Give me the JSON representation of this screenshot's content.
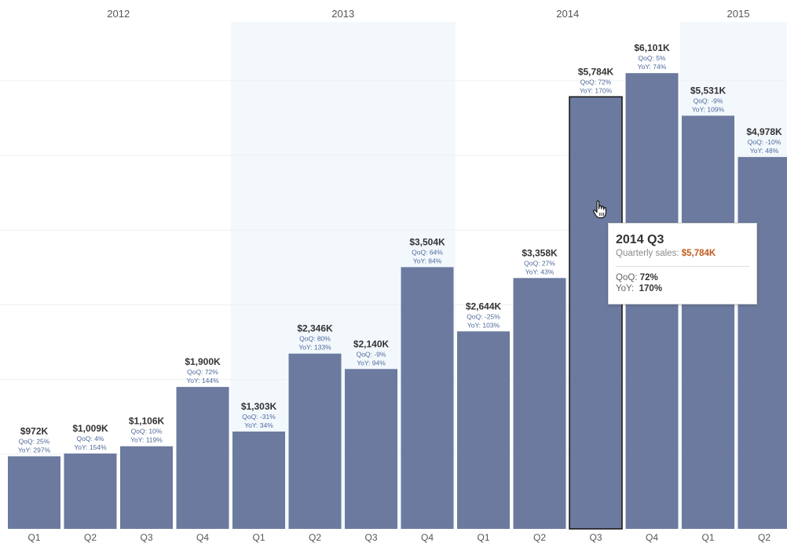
{
  "colors": {
    "bar": "#6b7a9e",
    "bar_highlight_outline": "#111111",
    "band": "#f3f8fd",
    "value_label": "#333333",
    "pct_label": "#4d6a9a",
    "tooltip_value": "#c05a1c"
  },
  "chart_data": {
    "type": "bar",
    "years": [
      "2012",
      "2013",
      "2014",
      "2015"
    ],
    "categories": [
      "Q1",
      "Q2",
      "Q3",
      "Q4",
      "Q1",
      "Q2",
      "Q3",
      "Q4",
      "Q1",
      "Q2",
      "Q3",
      "Q4",
      "Q1",
      "Q2"
    ],
    "values": [
      972,
      1009,
      1106,
      1900,
      1303,
      2346,
      2140,
      3504,
      2644,
      3358,
      5784,
      6101,
      5531,
      4978
    ],
    "value_labels": [
      "$972K",
      "$1,009K",
      "$1,106K",
      "$1,900K",
      "$1,303K",
      "$2,346K",
      "$2,140K",
      "$3,504K",
      "$2,644K",
      "$3,358K",
      "$5,784K",
      "$6,101K",
      "$5,531K",
      "$4,978K"
    ],
    "qoq": [
      "QoQ: 25%",
      "QoQ: 4%",
      "QoQ: 10%",
      "QoQ: 72%",
      "QoQ: -31%",
      "QoQ: 80%",
      "QoQ: -9%",
      "QoQ: 64%",
      "QoQ: -25%",
      "QoQ: 27%",
      "QoQ: 72%",
      "QoQ: 5%",
      "QoQ: -9%",
      "QoQ: -10%"
    ],
    "yoy": [
      "YoY: 297%",
      "YoY: 154%",
      "YoY: 119%",
      "YoY: 144%",
      "YoY: 34%",
      "YoY: 133%",
      "YoY: 94%",
      "YoY: 84%",
      "YoY: 103%",
      "YoY: 43%",
      "YoY: 170%",
      "YoY: 74%",
      "YoY: 109%",
      "YoY: 48%"
    ],
    "ylim": [
      0,
      6500
    ],
    "grid": "horizontal",
    "highlighted_index": 10
  },
  "tooltip": {
    "title": "2014 Q3",
    "sales_label": "Quarterly sales:",
    "sales_value": "$5,784K",
    "qoq_label": "QoQ:",
    "qoq_value": "72%",
    "yoy_label": "YoY:",
    "yoy_value": "170%"
  },
  "cursor_icon": "hand-pointer-icon"
}
